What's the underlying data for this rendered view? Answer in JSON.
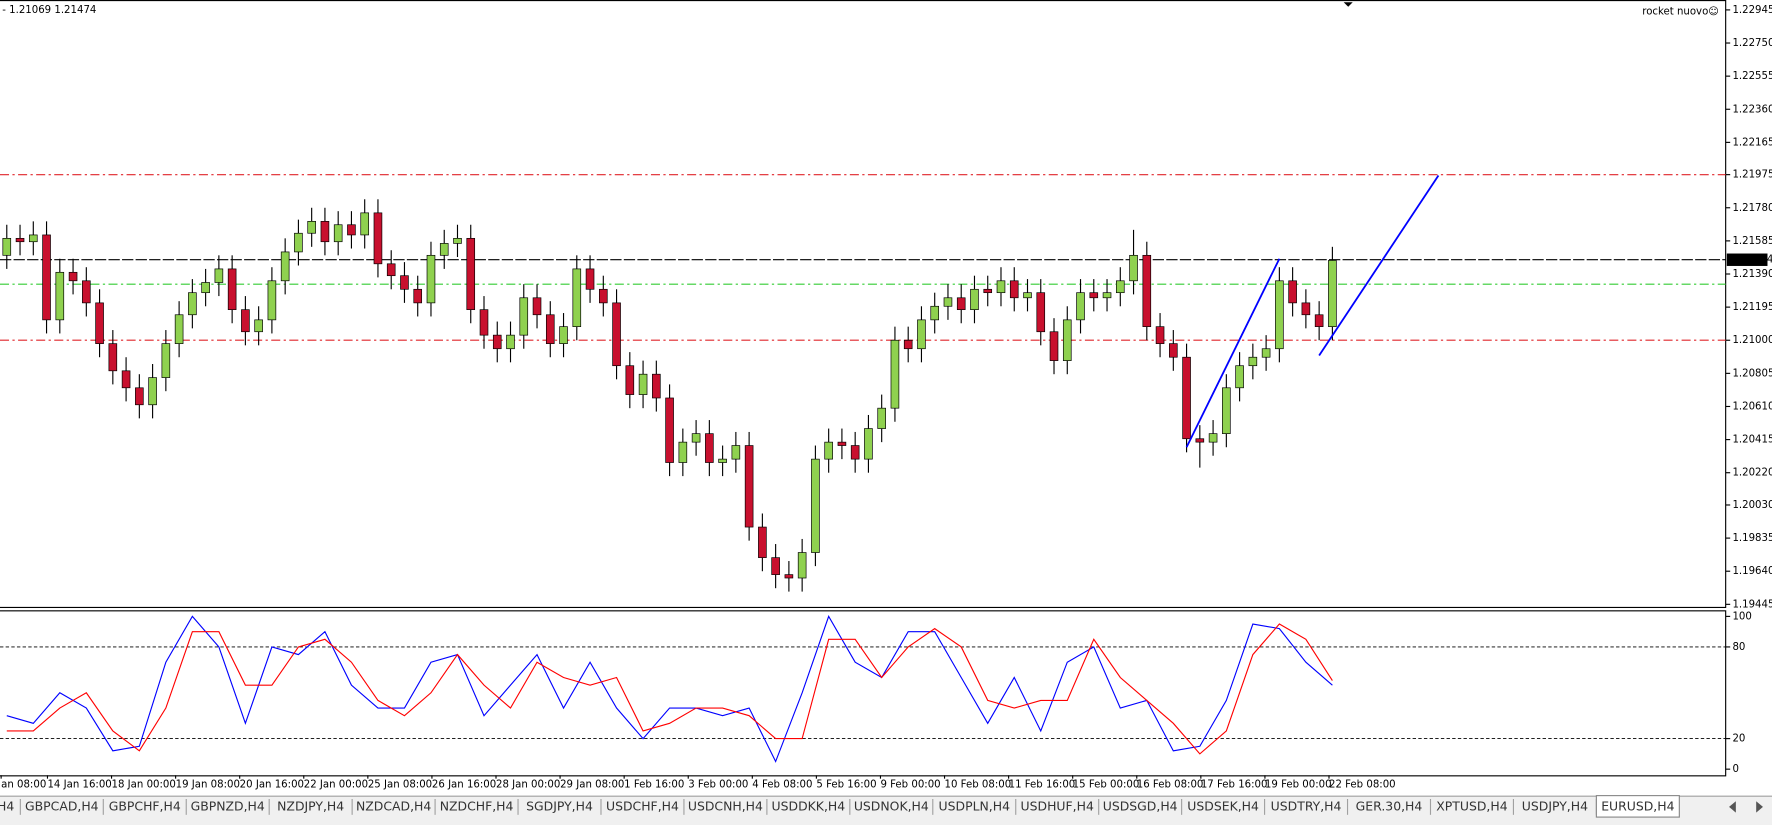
{
  "header": {
    "prices": "- 1.21069 1.21474",
    "indicator": "rocket nuovo☺"
  },
  "chart_data": {
    "type": "candlestick",
    "symbol": "EURUSD,H4",
    "bull_color": "#8fd14f",
    "bear_color": "#c8102e",
    "candles": [
      [
        1.215,
        1.2168,
        1.2142,
        1.216
      ],
      [
        1.216,
        1.2168,
        1.215,
        1.2158
      ],
      [
        1.2158,
        1.217,
        1.215,
        1.2162
      ],
      [
        1.2162,
        1.217,
        1.2104,
        1.2112
      ],
      [
        1.2112,
        1.2148,
        1.2104,
        1.214
      ],
      [
        1.214,
        1.2148,
        1.2127,
        1.2135
      ],
      [
        1.2135,
        1.2143,
        1.2114,
        1.2122
      ],
      [
        1.2122,
        1.213,
        1.209,
        1.2098
      ],
      [
        1.2098,
        1.2106,
        1.2074,
        1.2082
      ],
      [
        1.2082,
        1.209,
        1.2064,
        1.2072
      ],
      [
        1.2072,
        1.208,
        1.2054,
        1.2062
      ],
      [
        1.2062,
        1.2086,
        1.2054,
        1.2078
      ],
      [
        1.2078,
        1.2106,
        1.207,
        1.2098
      ],
      [
        1.2098,
        1.2123,
        1.209,
        1.2115
      ],
      [
        1.2115,
        1.2136,
        1.2107,
        1.2128
      ],
      [
        1.2128,
        1.2142,
        1.212,
        1.2134
      ],
      [
        1.2134,
        1.215,
        1.2126,
        1.2142
      ],
      [
        1.2142,
        1.215,
        1.211,
        1.2118
      ],
      [
        1.2118,
        1.2126,
        1.2097,
        1.2105
      ],
      [
        1.2105,
        1.212,
        1.2097,
        1.2112
      ],
      [
        1.2112,
        1.2143,
        1.2104,
        1.2135
      ],
      [
        1.2135,
        1.216,
        1.2127,
        1.2152
      ],
      [
        1.2152,
        1.2171,
        1.2144,
        1.2163
      ],
      [
        1.2163,
        1.2178,
        1.2155,
        1.217
      ],
      [
        1.217,
        1.2178,
        1.215,
        1.2158
      ],
      [
        1.2158,
        1.2176,
        1.215,
        1.2168
      ],
      [
        1.2168,
        1.2176,
        1.2154,
        1.2162
      ],
      [
        1.2162,
        1.2183,
        1.2154,
        1.2175
      ],
      [
        1.2175,
        1.2183,
        1.2137,
        1.2145
      ],
      [
        1.2145,
        1.2153,
        1.213,
        1.2138
      ],
      [
        1.2138,
        1.2146,
        1.2122,
        1.213
      ],
      [
        1.213,
        1.2138,
        1.2114,
        1.2122
      ],
      [
        1.2122,
        1.2158,
        1.2114,
        1.215
      ],
      [
        1.215,
        1.2165,
        1.2142,
        1.2157
      ],
      [
        1.2157,
        1.2168,
        1.2149,
        1.216
      ],
      [
        1.216,
        1.2168,
        1.211,
        1.2118
      ],
      [
        1.2118,
        1.2126,
        1.2095,
        1.2103
      ],
      [
        1.2103,
        1.2111,
        1.2087,
        1.2095
      ],
      [
        1.2095,
        1.2111,
        1.2087,
        1.2103
      ],
      [
        1.2103,
        1.2133,
        1.2095,
        1.2125
      ],
      [
        1.2125,
        1.2133,
        1.2107,
        1.2115
      ],
      [
        1.2115,
        1.2123,
        1.209,
        1.2098
      ],
      [
        1.2098,
        1.2116,
        1.209,
        1.2108
      ],
      [
        1.2108,
        1.215,
        1.21,
        1.2142
      ],
      [
        1.2142,
        1.215,
        1.2122,
        1.213
      ],
      [
        1.213,
        1.2138,
        1.2114,
        1.2122
      ],
      [
        1.2122,
        1.213,
        1.2077,
        1.2085
      ],
      [
        1.2085,
        1.2093,
        1.206,
        1.2068
      ],
      [
        1.2068,
        1.2088,
        1.206,
        1.208
      ],
      [
        1.208,
        1.2088,
        1.2058,
        1.2066
      ],
      [
        1.2066,
        1.2074,
        1.202,
        1.2028
      ],
      [
        1.2028,
        1.2048,
        1.202,
        1.204
      ],
      [
        1.204,
        1.2053,
        1.2032,
        1.2045
      ],
      [
        1.2045,
        1.2053,
        1.202,
        1.2028
      ],
      [
        1.2028,
        1.2038,
        1.202,
        1.203
      ],
      [
        1.203,
        1.2046,
        1.2022,
        1.2038
      ],
      [
        1.2038,
        1.2046,
        1.1982,
        1.199
      ],
      [
        1.199,
        1.1998,
        1.1964,
        1.1972
      ],
      [
        1.1972,
        1.198,
        1.1954,
        1.1962
      ],
      [
        1.1962,
        1.197,
        1.1952,
        1.196
      ],
      [
        1.196,
        1.1983,
        1.1952,
        1.1975
      ],
      [
        1.1975,
        1.2038,
        1.1967,
        1.203
      ],
      [
        1.203,
        1.2048,
        1.2022,
        1.204
      ],
      [
        1.204,
        1.2048,
        1.203,
        1.2038
      ],
      [
        1.2038,
        1.2046,
        1.2022,
        1.203
      ],
      [
        1.203,
        1.2056,
        1.2022,
        1.2048
      ],
      [
        1.2048,
        1.2068,
        1.204,
        1.206
      ],
      [
        1.206,
        1.2108,
        1.2052,
        1.21
      ],
      [
        1.21,
        1.2108,
        1.2087,
        1.2095
      ],
      [
        1.2095,
        1.212,
        1.2087,
        1.2112
      ],
      [
        1.2112,
        1.2128,
        1.2104,
        1.212
      ],
      [
        1.212,
        1.2133,
        1.2112,
        1.2125
      ],
      [
        1.2125,
        1.2133,
        1.211,
        1.2118
      ],
      [
        1.2118,
        1.2138,
        1.211,
        1.213
      ],
      [
        1.213,
        1.2138,
        1.212,
        1.2128
      ],
      [
        1.2128,
        1.2143,
        1.212,
        1.2135
      ],
      [
        1.2135,
        1.2143,
        1.2117,
        1.2125
      ],
      [
        1.2125,
        1.2136,
        1.2117,
        1.2128
      ],
      [
        1.2128,
        1.2136,
        1.2097,
        1.2105
      ],
      [
        1.2105,
        1.2113,
        1.208,
        1.2088
      ],
      [
        1.2088,
        1.212,
        1.208,
        1.2112
      ],
      [
        1.2112,
        1.2136,
        1.2104,
        1.2128
      ],
      [
        1.2128,
        1.2136,
        1.2117,
        1.2125
      ],
      [
        1.2125,
        1.2136,
        1.2117,
        1.2128
      ],
      [
        1.2128,
        1.2143,
        1.212,
        1.2135
      ],
      [
        1.2135,
        1.2165,
        1.2127,
        1.215
      ],
      [
        1.215,
        1.2158,
        1.21,
        1.2108
      ],
      [
        1.2108,
        1.2116,
        1.209,
        1.2098
      ],
      [
        1.2098,
        1.2106,
        1.2082,
        1.209
      ],
      [
        1.209,
        1.2098,
        1.2034,
        1.2042
      ],
      [
        1.2042,
        1.205,
        1.2025,
        1.204
      ],
      [
        1.204,
        1.2053,
        1.2032,
        1.2045
      ],
      [
        1.2045,
        1.208,
        1.2037,
        1.2072
      ],
      [
        1.2072,
        1.2093,
        1.2064,
        1.2085
      ],
      [
        1.2085,
        1.2098,
        1.2077,
        1.209
      ],
      [
        1.209,
        1.2103,
        1.2082,
        1.2095
      ],
      [
        1.2095,
        1.2143,
        1.2087,
        1.2135
      ],
      [
        1.2135,
        1.2143,
        1.2114,
        1.2122
      ],
      [
        1.2122,
        1.213,
        1.2107,
        1.2115
      ],
      [
        1.2115,
        1.2123,
        1.21,
        1.2108
      ],
      [
        1.2108,
        1.2155,
        1.21,
        1.2147
      ]
    ],
    "ylim": [
      1.1943,
      1.2299
    ],
    "yticks": [
      1.22945,
      {
        "value": 1.2275,
        "label": "1.22750"
      },
      1.22555,
      {
        "value": 1.2236,
        "label": "1.22360"
      },
      1.22165,
      1.21975,
      {
        "value": 1.2178,
        "label": "1.21780"
      },
      1.21585,
      {
        "value": 1.2139,
        "label": "1.21390"
      },
      1.21195,
      {
        "value": 1.21,
        "label": "1.21000"
      },
      1.20805,
      {
        "value": 1.2061,
        "label": "1.20610"
      },
      1.20415,
      {
        "value": 1.2022,
        "label": "1.20220"
      },
      {
        "value": 1.2003,
        "label": "1.20030"
      },
      1.19835,
      {
        "value": 1.1964,
        "label": "1.19640"
      },
      1.19445
    ],
    "current_price": 1.21474,
    "levels": [
      {
        "value": 1.21975,
        "color": "#e0262b",
        "dash": "8 3 2 3"
      },
      {
        "value": 1.21,
        "color": "#e0262b",
        "dash": "8 3 2 3"
      },
      {
        "value": 1.2133,
        "color": "#33cc33",
        "dash": "8 3 2 3"
      },
      {
        "value": 1.21474,
        "color": "#000000",
        "dash": "10 2"
      }
    ],
    "trendlines": [
      {
        "color": "#0000ff",
        "points": [
          [
            89,
            1.2037
          ],
          [
            96,
            1.2148
          ]
        ]
      },
      {
        "color": "#0000ff",
        "points": [
          [
            99,
            1.2091
          ],
          [
            108,
            1.2197
          ]
        ]
      }
    ],
    "x_labels": [
      "an 08:00",
      "14 Jan 16:00",
      "18 Jan 00:00",
      "19 Jan 08:00",
      "20 Jan 16:00",
      "22 Jan 00:00",
      "25 Jan 08:00",
      "26 Jan 16:00",
      "28 Jan 00:00",
      "29 Jan 08:00",
      "1 Feb 16:00",
      "3 Feb 00:00",
      "4 Feb 08:00",
      "5 Feb 16:00",
      "9 Feb 00:00",
      "10 Feb 08:00",
      "11 Feb 16:00",
      "15 Feb 00:00",
      "16 Feb 08:00",
      "17 Feb 16:00",
      "19 Feb 00:00",
      "22 Feb 08:00"
    ],
    "oscillator": {
      "y2lim": [
        -4,
        104
      ],
      "y2ticks": [
        100,
        80,
        20,
        0
      ],
      "levels": [
        80,
        20
      ],
      "series": [
        {
          "color": "#0000ff",
          "values": [
            35,
            30,
            50,
            40,
            12,
            15,
            70,
            100,
            80,
            30,
            80,
            75,
            90,
            55,
            40,
            40,
            70,
            75,
            35,
            55,
            75,
            40,
            70,
            40,
            20,
            40,
            40,
            35,
            40,
            5,
            50,
            100,
            70,
            60,
            90,
            90,
            60,
            30,
            60,
            25,
            70,
            80,
            40,
            45,
            12,
            15,
            45,
            95,
            92,
            70,
            55
          ]
        },
        {
          "color": "#ff0000",
          "values": [
            25,
            25,
            40,
            50,
            25,
            12,
            40,
            90,
            90,
            55,
            55,
            80,
            85,
            70,
            45,
            35,
            50,
            75,
            55,
            40,
            70,
            60,
            55,
            60,
            25,
            30,
            40,
            40,
            35,
            20,
            20,
            85,
            85,
            60,
            80,
            92,
            80,
            45,
            40,
            45,
            45,
            85,
            60,
            45,
            30,
            10,
            25,
            75,
            95,
            85,
            58
          ]
        }
      ]
    }
  },
  "tabs": [
    "H4",
    "GBPCAD,H4",
    "GBPCHF,H4",
    "GBPNZD,H4",
    "NZDJPY,H4",
    "NZDCAD,H4",
    "NZDCHF,H4",
    "SGDJPY,H4",
    "USDCHF,H4",
    "USDCNH,H4",
    "USDDKK,H4",
    "USDNOK,H4",
    "USDPLN,H4",
    "USDHUF,H4",
    "USDSGD,H4",
    "USDSEK,H4",
    "USDTRY,H4",
    "GER.30,H4",
    "XPTUSD,H4",
    "USDJPY,H4",
    "EURUSD,H4"
  ],
  "active_tab": 20
}
